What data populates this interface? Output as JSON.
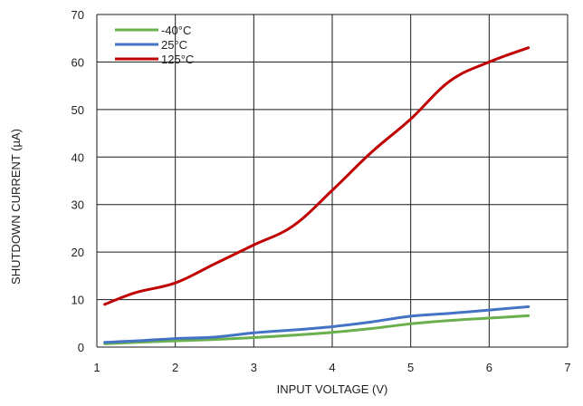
{
  "chart_data": {
    "type": "line",
    "xlabel": "INPUT VOLTAGE (V)",
    "ylabel": "SHUTDOWN CURRENT (µA)",
    "xlim": [
      1,
      7
    ],
    "ylim": [
      0,
      70
    ],
    "xticks": [
      "1",
      "2",
      "3",
      "4",
      "5",
      "6",
      "7"
    ],
    "yticks": [
      "0",
      "10",
      "20",
      "30",
      "40",
      "50",
      "60",
      "70"
    ],
    "grid": true,
    "legend_position": "top-left",
    "series": [
      {
        "name": "-40°C",
        "color": "#6ab04c",
        "x": [
          1.1,
          1.5,
          2.0,
          2.5,
          3.0,
          3.5,
          4.0,
          4.5,
          5.0,
          5.5,
          6.0,
          6.5
        ],
        "y": [
          0.7,
          1.0,
          1.3,
          1.6,
          2.0,
          2.5,
          3.1,
          3.9,
          4.9,
          5.6,
          6.1,
          6.6
        ]
      },
      {
        "name": "25°C",
        "color": "#4472c4",
        "x": [
          1.1,
          1.5,
          2.0,
          2.5,
          3.0,
          3.5,
          4.0,
          4.5,
          5.0,
          5.5,
          6.0,
          6.5
        ],
        "y": [
          1.0,
          1.3,
          1.8,
          2.1,
          3.0,
          3.6,
          4.3,
          5.3,
          6.5,
          7.1,
          7.8,
          8.5
        ]
      },
      {
        "name": "125°C",
        "color": "#c00000",
        "x": [
          1.1,
          1.5,
          2.0,
          2.5,
          3.0,
          3.5,
          4.0,
          4.5,
          5.0,
          5.5,
          6.0,
          6.5
        ],
        "y": [
          9.0,
          11.5,
          13.5,
          17.5,
          21.5,
          25.5,
          33.0,
          41.0,
          48.0,
          56.0,
          60.0,
          63.0
        ]
      }
    ]
  }
}
